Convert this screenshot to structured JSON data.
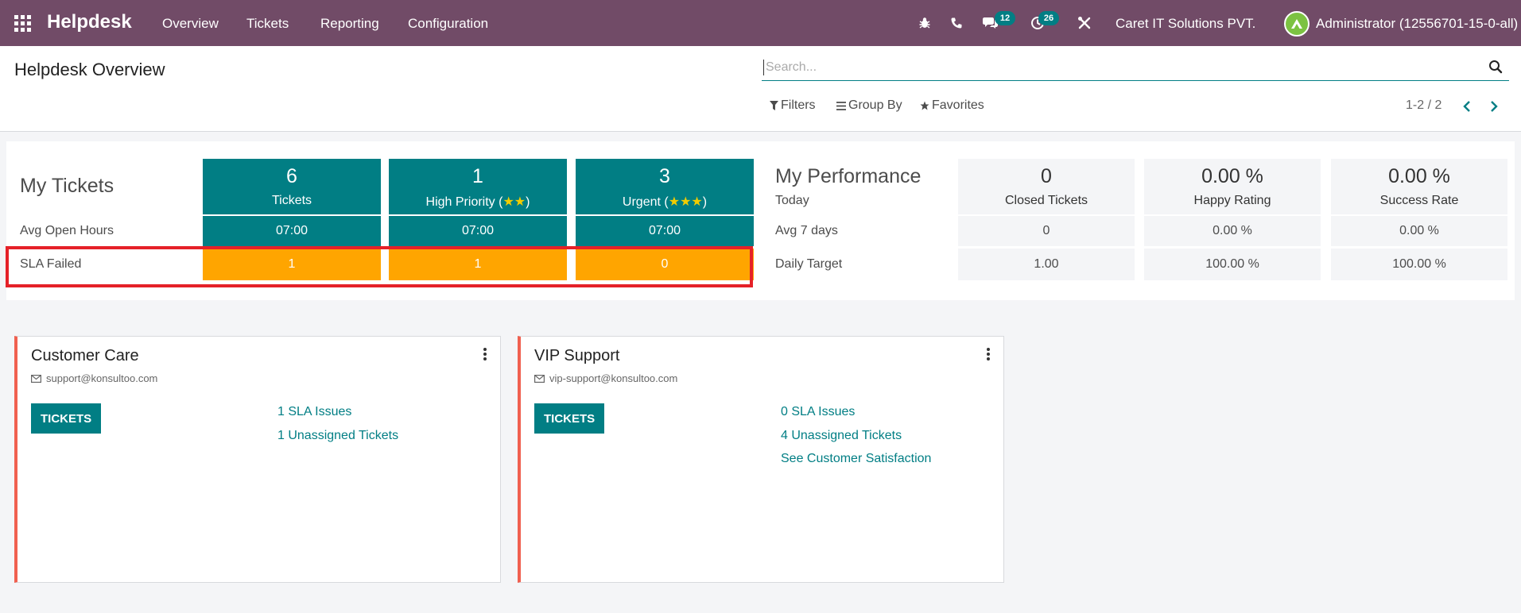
{
  "navbar": {
    "brand": "Helpdesk",
    "menu": [
      "Overview",
      "Tickets",
      "Reporting",
      "Configuration"
    ],
    "messages_badge": "12",
    "activities_badge": "26",
    "company": "Caret IT Solutions PVT.",
    "user": "Administrator (12556701-15-0-all)",
    "icons": [
      "apps-icon",
      "bug-icon",
      "phone-icon",
      "chat-icon",
      "clock-icon",
      "tools-icon"
    ]
  },
  "control_panel": {
    "title": "Helpdesk Overview",
    "search_placeholder": "Search...",
    "filters": "Filters",
    "group_by": "Group By",
    "favorites": "Favorites",
    "pager": "1-2 / 2"
  },
  "my_tickets": {
    "title": "My Tickets",
    "avg_open_hours_label": "Avg Open Hours",
    "sla_failed_label": "SLA Failed",
    "columns": [
      {
        "count": "6",
        "label": "Tickets",
        "stars": 0,
        "avg": "07:00",
        "sla": "1"
      },
      {
        "count": "1",
        "label": "High Priority (",
        "stars": 2,
        "avg": "07:00",
        "sla": "1"
      },
      {
        "count": "3",
        "label": "Urgent (",
        "stars": 3,
        "avg": "07:00",
        "sla": "0"
      }
    ]
  },
  "my_performance": {
    "title": "My Performance",
    "today_label": "Today",
    "avg7_label": "Avg 7 days",
    "daily_target_label": "Daily Target",
    "columns": [
      {
        "value": "0",
        "label": "Closed Tickets",
        "avg7": "0",
        "target": "1.00"
      },
      {
        "value": "0.00 %",
        "label": "Happy Rating",
        "avg7": "0.00 %",
        "target": "100.00 %"
      },
      {
        "value": "0.00 %",
        "label": "Success Rate",
        "avg7": "0.00 %",
        "target": "100.00 %"
      }
    ]
  },
  "teams": [
    {
      "name": "Customer Care",
      "email": "support@konsultoo.com",
      "button": "TICKETS",
      "links": [
        "1 SLA Issues",
        "1 Unassigned Tickets"
      ]
    },
    {
      "name": "VIP Support",
      "email": "vip-support@konsultoo.com",
      "button": "TICKETS",
      "links": [
        "0 SLA Issues",
        "4 Unassigned Tickets",
        "See Customer Satisfaction"
      ]
    }
  ],
  "colors": {
    "navbar": "#714b67",
    "teal": "#017e84",
    "orange": "#ffa500",
    "highlight": "#e52128",
    "card_accent": "#f06050"
  }
}
